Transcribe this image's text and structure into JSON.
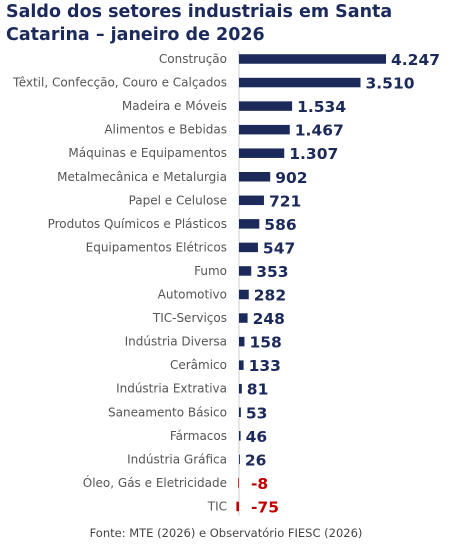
{
  "chart_data": {
    "type": "bar",
    "orientation": "horizontal",
    "title_lines": [
      "Saldo dos setores industriais em Santa",
      "Catarina – janeiro de 2026"
    ],
    "categories": [
      "Construção",
      "Têxtil, Confecção, Couro e Calçados",
      "Madeira e Móveis",
      "Alimentos e Bebidas",
      "Máquinas e Equipamentos",
      "Metalmecânica e Metalurgia",
      "Papel e Celulose",
      "Produtos Químicos e Plásticos",
      "Equipamentos Elétricos",
      "Fumo",
      "Automotivo",
      "TIC-Serviços",
      "Indústria Diversa",
      "Cerâmico",
      "Indústria Extrativa",
      "Saneamento Básico",
      "Fármacos",
      "Indústria Gráfica",
      "Óleo, Gás e Eletricidade",
      "TIC"
    ],
    "values": [
      4247,
      3510,
      1534,
      1467,
      1307,
      902,
      721,
      586,
      547,
      353,
      282,
      248,
      158,
      133,
      81,
      53,
      46,
      26,
      -8,
      -75
    ],
    "value_labels": [
      "4.247",
      "3.510",
      "1.534",
      "1.467",
      "1.307",
      "902",
      "721",
      "586",
      "547",
      "353",
      "282",
      "248",
      "158",
      "133",
      "81",
      "53",
      "46",
      "26",
      "-8",
      "-75"
    ],
    "colors": {
      "positive": "#1b2a5a",
      "negative": "#c00000",
      "axis": "#cccccc"
    },
    "grid": false,
    "legend": "none"
  },
  "source": "Fonte: MTE (2026) e Observatório FIESC (2026)"
}
